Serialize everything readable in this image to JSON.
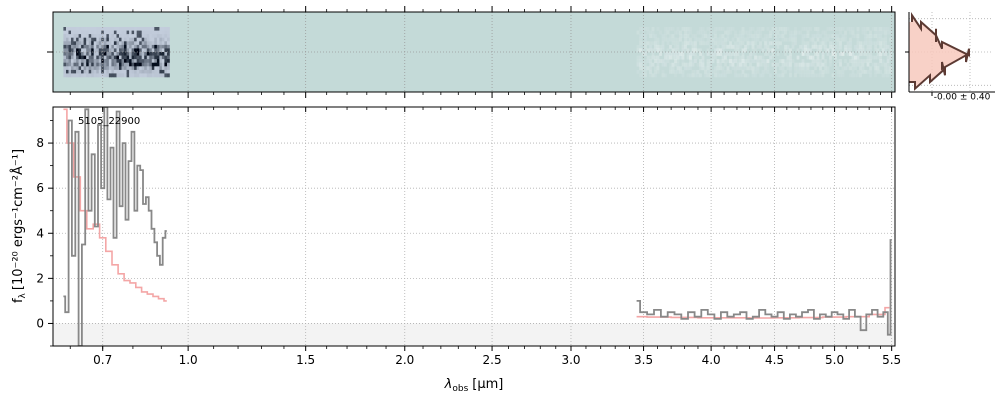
{
  "chart_data": [
    {
      "type": "heatmap",
      "panel": "2d-spectrum",
      "background_color": "#c4dad8",
      "cmap": "bone_r",
      "grid": true,
      "segments": [
        {
          "x_range": [
            0.58,
            0.93
          ],
          "contrast": "high"
        },
        {
          "x_range": [
            3.45,
            5.5
          ],
          "contrast": "low"
        }
      ]
    },
    {
      "type": "line",
      "panel": "1d-spectrum",
      "title": "",
      "annotation": "5105_22900",
      "xlabel_base": "λ",
      "xlabel_sub": "obs",
      "xlabel_unit": "[μm]",
      "ylabel_base": "f",
      "ylabel_sub": "λ",
      "ylabel_unit": "[10⁻²⁰ ergs⁻¹cm⁻²Å⁻¹]",
      "x_scale": "sqrt",
      "xlim": [
        0.55,
        5.53
      ],
      "ylim": [
        -1,
        9.6
      ],
      "x_ticks": [
        "0.7",
        "1.0",
        "1.5",
        "2.0",
        "2.5",
        "3.0",
        "3.5",
        "4.0",
        "4.5",
        "5.0",
        "5.5"
      ],
      "y_ticks": [
        "0",
        "2",
        "4",
        "6",
        "8"
      ],
      "grid": true,
      "series": [
        {
          "role": "data",
          "color": "#888888",
          "segments": [
            {
              "x": [
                0.58,
                0.59,
                0.6,
                0.61,
                0.62,
                0.63,
                0.64,
                0.65,
                0.66,
                0.67,
                0.68,
                0.69,
                0.7,
                0.71,
                0.72,
                0.73,
                0.74,
                0.75,
                0.76,
                0.77,
                0.78,
                0.79,
                0.8,
                0.81,
                0.82,
                0.83,
                0.84,
                0.85,
                0.86,
                0.87,
                0.88,
                0.89,
                0.9,
                0.91,
                0.92
              ],
              "y": [
                1.2,
                0.5,
                9.0,
                3.0,
                8.5,
                -1.0,
                3.5,
                9.5,
                5.0,
                7.5,
                4.3,
                8.8,
                6.0,
                9.6,
                5.5,
                7.8,
                3.8,
                9.4,
                5.2,
                8.0,
                4.6,
                7.2,
                8.5,
                5.0,
                7.0,
                6.8,
                5.3,
                5.6,
                5.0,
                4.2,
                3.6,
                3.0,
                2.6,
                3.8,
                4.1
              ]
            },
            {
              "x": [
                3.45,
                3.5,
                3.55,
                3.6,
                3.65,
                3.7,
                3.75,
                3.8,
                3.85,
                3.9,
                3.95,
                4.0,
                4.05,
                4.1,
                4.15,
                4.2,
                4.25,
                4.3,
                4.35,
                4.4,
                4.45,
                4.5,
                4.55,
                4.6,
                4.65,
                4.7,
                4.75,
                4.8,
                4.85,
                4.9,
                4.95,
                5.0,
                5.05,
                5.1,
                5.15,
                5.2,
                5.25,
                5.3,
                5.35,
                5.4,
                5.45,
                5.48,
                5.5
              ],
              "y": [
                1.0,
                0.5,
                0.4,
                0.6,
                0.3,
                0.5,
                0.4,
                0.2,
                0.5,
                0.3,
                0.6,
                0.4,
                0.2,
                0.5,
                0.3,
                0.4,
                0.5,
                0.2,
                0.3,
                0.6,
                0.4,
                0.3,
                0.5,
                0.2,
                0.4,
                0.3,
                0.5,
                0.6,
                0.2,
                0.4,
                0.3,
                0.5,
                0.4,
                0.2,
                0.6,
                0.3,
                -0.3,
                0.4,
                0.6,
                0.3,
                0.5,
                -0.5,
                3.7
              ]
            }
          ]
        },
        {
          "role": "model",
          "color": "#f4a6a6",
          "segments": [
            {
              "x": [
                0.58,
                0.6,
                0.62,
                0.64,
                0.66,
                0.68,
                0.7,
                0.72,
                0.74,
                0.76,
                0.78,
                0.8,
                0.82,
                0.84,
                0.86,
                0.88,
                0.9,
                0.92
              ],
              "y": [
                9.5,
                8.0,
                6.5,
                5.0,
                4.2,
                4.4,
                3.8,
                3.2,
                2.6,
                2.2,
                1.9,
                1.8,
                1.6,
                1.4,
                1.3,
                1.2,
                1.1,
                1.0
              ]
            },
            {
              "x": [
                3.45,
                3.6,
                3.8,
                4.0,
                4.2,
                4.4,
                4.6,
                4.8,
                5.0,
                5.2,
                5.4,
                5.48
              ],
              "y": [
                0.3,
                0.28,
                0.27,
                0.25,
                0.25,
                0.24,
                0.25,
                0.26,
                0.28,
                0.3,
                0.4,
                0.7
              ]
            }
          ]
        }
      ]
    },
    {
      "type": "histogram",
      "panel": "residual-histogram",
      "annotation": "-0.00 ± 0.40",
      "color": "#5c3a33",
      "fill_color": "#f7c9bd",
      "bins": [
        {
          "y": -1.0,
          "count": 0.1
        },
        {
          "y": -0.8,
          "count": 0.35
        },
        {
          "y": -0.6,
          "count": 0.6
        },
        {
          "y": -0.4,
          "count": 0.55
        },
        {
          "y": -0.2,
          "count": 0.95
        },
        {
          "y": 0.0,
          "count": 1.0
        },
        {
          "y": 0.2,
          "count": 0.55
        },
        {
          "y": 0.4,
          "count": 0.45
        },
        {
          "y": 0.6,
          "count": 0.45
        },
        {
          "y": 0.8,
          "count": 0.2
        },
        {
          "y": 1.0,
          "count": 0.05
        }
      ]
    }
  ]
}
